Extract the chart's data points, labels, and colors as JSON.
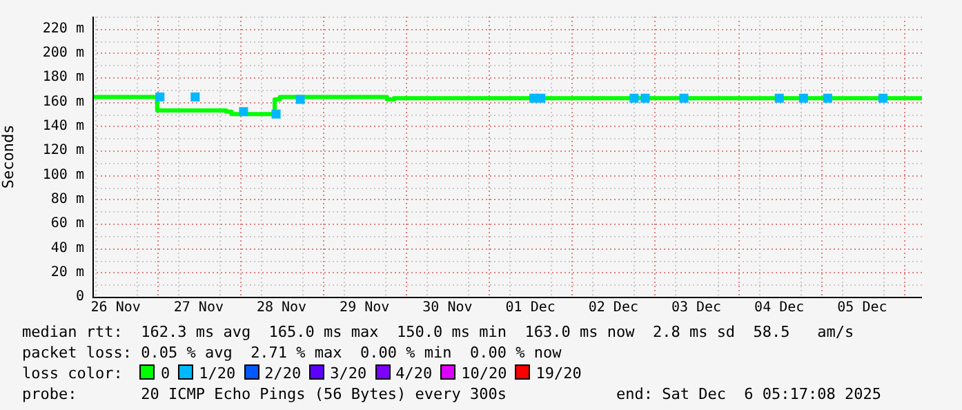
{
  "chart_data": {
    "type": "step",
    "ylabel": "Seconds",
    "legend_title": "loss color:",
    "legend": "bottom",
    "grid": true,
    "marker": "none",
    "xlim": [
      "2025-11-26T05:17",
      "2025-12-06T05:17"
    ],
    "xticks": [
      {
        "value": "2025-11-26T12:00",
        "label": "26 Nov"
      },
      {
        "value": "2025-11-27T12:00",
        "label": "27 Nov"
      },
      {
        "value": "2025-11-28T12:00",
        "label": "28 Nov"
      },
      {
        "value": "2025-11-29T12:00",
        "label": "29 Nov"
      },
      {
        "value": "2025-11-30T12:00",
        "label": "30 Nov"
      },
      {
        "value": "2025-12-01T12:00",
        "label": "01 Dec"
      },
      {
        "value": "2025-12-02T12:00",
        "label": "02 Dec"
      },
      {
        "value": "2025-12-03T12:00",
        "label": "03 Dec"
      },
      {
        "value": "2025-12-04T12:00",
        "label": "04 Dec"
      },
      {
        "value": "2025-12-05T12:00",
        "label": "05 Dec"
      }
    ],
    "ylim": [
      0,
      230
    ],
    "yticks": [
      0,
      {
        "value": 20,
        "label": "20 m"
      },
      {
        "value": 40,
        "label": "40 m"
      },
      {
        "value": 60,
        "label": "60 m"
      },
      {
        "value": 80,
        "label": "80 m"
      },
      {
        "value": 100,
        "label": "100 m"
      },
      {
        "value": 120,
        "label": "120 m"
      },
      {
        "value": 140,
        "label": "140 m"
      },
      {
        "value": 160,
        "label": "160 m"
      },
      {
        "value": 180,
        "label": "180 m"
      },
      {
        "value": 200,
        "label": "200 m"
      },
      {
        "value": 220,
        "label": "220 m"
      }
    ],
    "series": [
      {
        "name": "0",
        "color": "#00ff00",
        "x": [
          "2025-11-26T05:17",
          "2025-11-27T00:00",
          "2025-11-27T20:00",
          "2025-11-27T21:30",
          "2025-11-28T10:00",
          "2025-11-28T11:30",
          "2025-11-29T18:30",
          "2025-11-29T20:30",
          "2025-12-01T12:30",
          "2025-12-06T05:17"
        ],
        "values": [
          165,
          164,
          153,
          152,
          150,
          162,
          164,
          162,
          163,
          163
        ]
      },
      {
        "name": "1/20",
        "color": "#00b8ff",
        "type": "scatter",
        "marker": "square",
        "x": [
          "2025-11-27T00:48",
          "2025-11-27T11:00",
          "2025-11-28T01:00",
          "2025-11-28T10:24",
          "2025-11-28T17:24",
          "2025-12-01T13:00",
          "2025-12-01T15:00",
          "2025-12-02T18:00",
          "2025-12-02T21:12",
          "2025-12-03T08:24",
          "2025-12-04T12:00",
          "2025-12-04T19:00",
          "2025-12-05T02:00",
          "2025-12-05T18:00"
        ],
        "values": [
          164,
          164,
          152,
          150,
          162,
          163,
          163,
          163,
          163,
          163,
          163,
          163,
          163,
          163
        ]
      },
      {
        "name": "2/20",
        "color": "#0059ff"
      },
      {
        "name": "3/20",
        "color": "#5e00ff"
      },
      {
        "name": "4/20",
        "color": "#7e00ff"
      },
      {
        "name": "10/20",
        "color": "#dd00ff"
      },
      {
        "name": "19/20",
        "color": "#ff0000"
      }
    ],
    "annotations": [
      "median rtt:  162.3 ms avg  165.0 ms max  150.0 ms min  163.0 ms now  2.8 ms sd  58.5   am/s",
      "packet loss: 0.05 % avg  2.71 % max  0.00 % min  0.00 % now",
      "probe:       20 ICMP Echo Pings (56 Bytes) every 300s            end: Sat Dec  6 05:17:08 2025"
    ]
  }
}
